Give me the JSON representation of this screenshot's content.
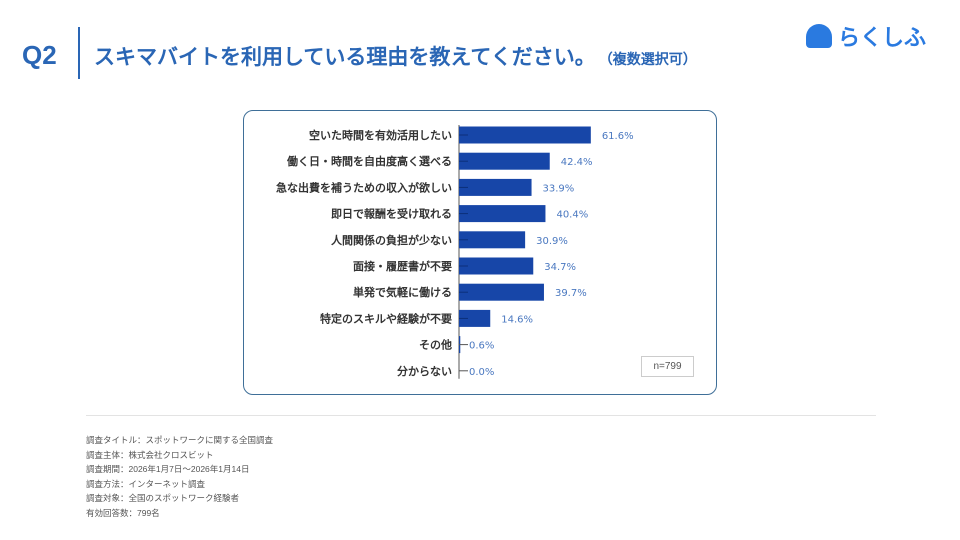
{
  "header": {
    "q": "Q2",
    "title": "スキマバイトを利用している理由を教えてください。",
    "note": "（複数選択可）",
    "logo": "らくしふ"
  },
  "chart_data": {
    "type": "bar",
    "orientation": "horizontal",
    "categories": [
      "空いた時間を有効活用したい",
      "働く日・時間を自由度高く選べる",
      "急な出費を補うための収入が欲しい",
      "即日で報酬を受け取れる",
      "人間関係の負担が少ない",
      "面接・履歴書が不要",
      "単発で気軽に働ける",
      "特定のスキルや経験が不要",
      "その他",
      "分からない"
    ],
    "values": [
      61.6,
      42.4,
      33.9,
      40.4,
      30.9,
      34.7,
      39.7,
      14.6,
      0.6,
      0.0
    ],
    "labels": [
      "61.6%",
      "42.4%",
      "33.9%",
      "40.4%",
      "30.9%",
      "34.7%",
      "39.7%",
      "14.6%",
      "0.6%",
      "0.0%"
    ],
    "bar_color": "#1746a8",
    "label_color": "#4a78c0",
    "sample": "n=799"
  },
  "footer": [
    "調査タイトル：スポットワークに関する全国調査",
    "調査主体：株式会社クロスビット",
    "調査期間：2026年1月7日〜2026年1月14日",
    "調査方法：インターネット調査",
    "調査対象：全国のスポットワーク経験者",
    "有効回答数：799名"
  ]
}
